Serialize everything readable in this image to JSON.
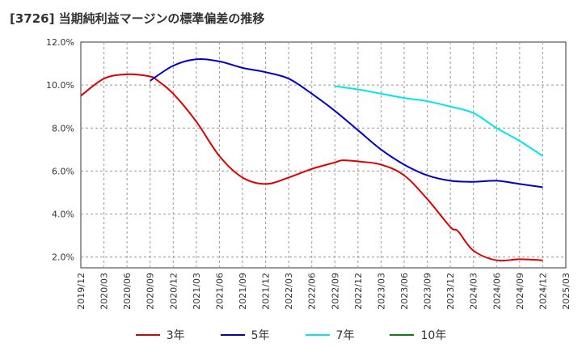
{
  "title": "[3726]  当期純利益マージンの標準偏差の推移",
  "chart_data": {
    "type": "line",
    "title": "[3726]  当期純利益マージンの標準偏差の推移",
    "xlabel": "",
    "ylabel": "",
    "x_ticks": [
      "2019/12",
      "2020/03",
      "2020/06",
      "2020/09",
      "2020/12",
      "2021/03",
      "2021/06",
      "2021/09",
      "2021/12",
      "2022/03",
      "2022/06",
      "2022/09",
      "2022/12",
      "2023/03",
      "2023/06",
      "2023/09",
      "2023/12",
      "2024/03",
      "2024/06",
      "2024/09",
      "2024/12",
      "2025/03"
    ],
    "y_ticks": [
      "2.0%",
      "4.0%",
      "6.0%",
      "8.0%",
      "10.0%",
      "12.0%"
    ],
    "ylim": [
      1.5,
      12.0
    ],
    "grid": true,
    "legend_position": "bottom",
    "series": [
      {
        "name": "3年",
        "color": "#dd0000",
        "x": [
          "2019/12",
          "2020/03",
          "2020/06",
          "2020/09",
          "2020/10",
          "2020/12",
          "2021/03",
          "2021/06",
          "2021/09",
          "2021/12",
          "2022/03",
          "2022/06",
          "2022/09",
          "2022/10",
          "2022/12",
          "2023/03",
          "2023/06",
          "2023/09",
          "2023/12",
          "2024/01",
          "2024/03",
          "2024/06",
          "2024/09",
          "2024/12"
        ],
        "values": [
          9.5,
          10.3,
          10.5,
          10.4,
          10.2,
          9.6,
          8.3,
          6.7,
          5.7,
          5.4,
          5.7,
          6.1,
          6.4,
          6.5,
          6.45,
          6.3,
          5.8,
          4.7,
          3.4,
          3.2,
          2.3,
          1.85,
          1.9,
          1.85
        ]
      },
      {
        "name": "5年",
        "color": "#0000cc",
        "x": [
          "2020/09",
          "2020/12",
          "2021/03",
          "2021/06",
          "2021/09",
          "2021/12",
          "2022/03",
          "2022/06",
          "2022/09",
          "2022/12",
          "2023/03",
          "2023/06",
          "2023/09",
          "2023/12",
          "2024/03",
          "2024/06",
          "2024/09",
          "2024/12"
        ],
        "values": [
          10.2,
          10.9,
          11.2,
          11.1,
          10.8,
          10.6,
          10.3,
          9.6,
          8.8,
          7.9,
          7.0,
          6.3,
          5.8,
          5.55,
          5.5,
          5.55,
          5.4,
          5.25
        ]
      },
      {
        "name": "7年",
        "color": "#00e5ee",
        "x": [
          "2022/09",
          "2022/12",
          "2023/03",
          "2023/06",
          "2023/09",
          "2023/12",
          "2024/03",
          "2024/06",
          "2024/09",
          "2024/12"
        ],
        "values": [
          9.95,
          9.8,
          9.6,
          9.4,
          9.25,
          9.0,
          8.7,
          8.0,
          7.4,
          6.7
        ]
      },
      {
        "name": "10年",
        "color": "#008800",
        "x": [],
        "values": []
      }
    ]
  }
}
